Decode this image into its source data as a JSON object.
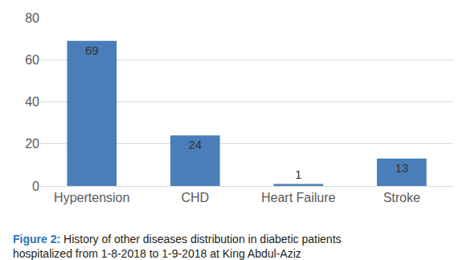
{
  "chart_data": {
    "type": "bar",
    "title": "Figure 2: History of other diseases distribution in diabetic patients hospitalized from 1-8-2018 to 1-9-2018 at King Abdul-Aziz",
    "categories": [
      "Hypertension",
      "CHD",
      "Heart Failure",
      "Stroke"
    ],
    "values": [
      69,
      24,
      1,
      13
    ],
    "color": "#4a7ebb",
    "ylim": [
      0,
      80
    ],
    "yticks": [
      0,
      20,
      40,
      60,
      80
    ],
    "grid": true,
    "data_labels": true
  }
}
